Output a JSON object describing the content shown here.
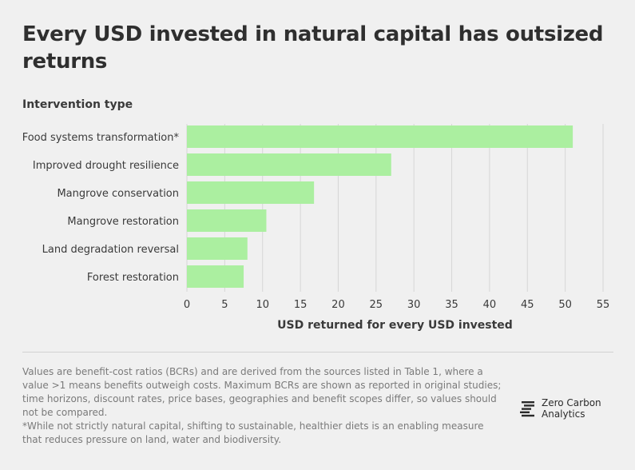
{
  "title": "Every USD invested in natural capital has outsized returns",
  "chart_data": {
    "type": "bar",
    "orientation": "horizontal",
    "y_header": "Intervention type",
    "xlabel": "USD returned for every USD invested",
    "categories": [
      "Food systems transformation*",
      "Improved drought resilience",
      "Mangrove conservation",
      "Mangrove restoration",
      "Land degradation reversal",
      "Forest restoration"
    ],
    "values": [
      51,
      27,
      16.8,
      10.5,
      8,
      7.5
    ],
    "xlim": [
      0,
      55
    ],
    "xticks": [
      "0",
      "5",
      "10",
      "15",
      "20",
      "25",
      "30",
      "35",
      "40",
      "45",
      "50",
      "55"
    ],
    "grid": true,
    "bar_color": "#abefa0"
  },
  "notes": {
    "line1": "Values are benefit-cost ratios (BCRs) and are derived from the sources listed in Table 1, where a value >1 means benefits outweigh costs. Maximum BCRs are shown as reported in original studies; time horizons, discount rates, price bases, geographies and benefit scopes differ, so values should not be compared.",
    "line2": "*While not strictly natural capital, shifting to sustainable, healthier diets is an enabling measure that reduces pressure on land, water and biodiversity."
  },
  "logo": {
    "line1": "Zero Carbon",
    "line2": "Analytics",
    "icon": "zca-logo-icon"
  }
}
